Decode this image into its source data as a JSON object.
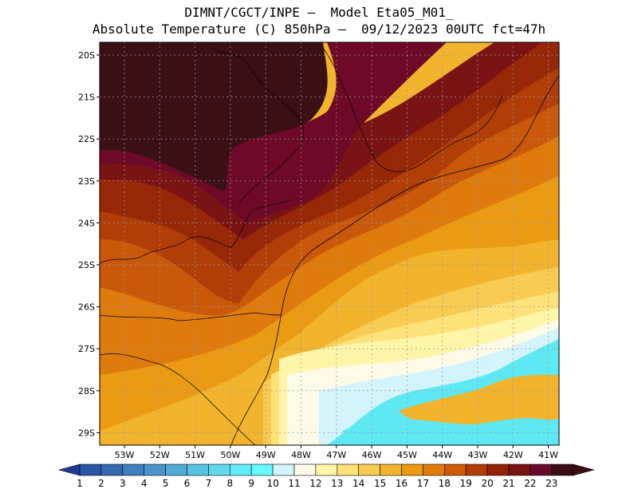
{
  "title": {
    "line1": "DIMNT/CGCT/INPE –  Model Eta05_M01_",
    "line2": "Absolute Temperature (C) 850hPa –  09/12/2023 00UTC fct=47h"
  },
  "map": {
    "lat_labels": [
      "20S",
      "21S",
      "22S",
      "23S",
      "24S",
      "25S",
      "26S",
      "27S",
      "28S",
      "29S"
    ],
    "lon_labels": [
      "53W",
      "52W",
      "51W",
      "50W",
      "49W",
      "48W",
      "47W",
      "46W",
      "45W",
      "44W",
      "43W",
      "42W",
      "41W"
    ]
  },
  "colorbar": {
    "labels": [
      "1",
      "2",
      "3",
      "4",
      "5",
      "6",
      "7",
      "8",
      "9",
      "10",
      "11",
      "12",
      "13",
      "14",
      "15",
      "16",
      "17",
      "18",
      "19",
      "20",
      "21",
      "22",
      "23"
    ],
    "colors": [
      "#1f3a93",
      "#2a56a8",
      "#3468b2",
      "#3d7fbf",
      "#4a95cc",
      "#51abd8",
      "#58c2e3",
      "#5ed8ef",
      "#62ecf8",
      "#66fafe",
      "#d2f4fa",
      "#fefae8",
      "#fff5a8",
      "#fde27a",
      "#f8cb52",
      "#f2b42c",
      "#eb9a12",
      "#e17c0a",
      "#cf5a06",
      "#b13c06",
      "#922405",
      "#7a1212",
      "#6a0a2a",
      "#3a0d12"
    ]
  },
  "field_colors": {
    "t23": "#3b1015",
    "t22": "#6e0a28",
    "t21": "#7a1414",
    "t20": "#962808",
    "t19": "#b13e07",
    "t18": "#c9580a",
    "t17": "#df7a0c",
    "t16": "#eb9a14",
    "t15": "#f2b42c",
    "t14": "#f8cb52",
    "t13": "#fde27a",
    "t12": "#fff5a8",
    "t11": "#fefae8",
    "t10": "#d2f4fa",
    "t9": "#66fafe",
    "t8": "#5ee8f4"
  }
}
